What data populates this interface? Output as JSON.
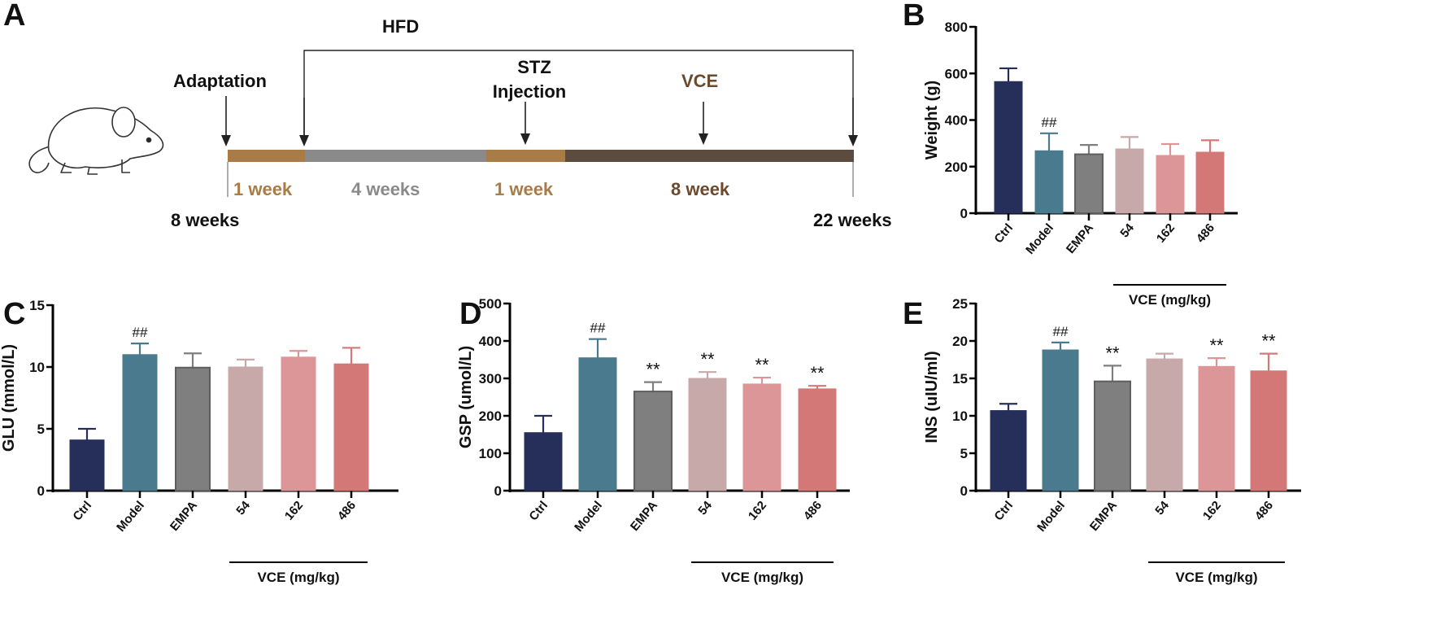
{
  "panel_letters": [
    "A",
    "B",
    "C",
    "D",
    "E"
  ],
  "timeline": {
    "hfd": "HFD",
    "adaptation": "Adaptation",
    "stz_line1": "STZ",
    "stz_line2": "Injection",
    "vce": "VCE",
    "start": "8 weeks",
    "end": "22 weeks",
    "segments": [
      {
        "label": "1 week",
        "weeks": 1,
        "color": "#a87c47"
      },
      {
        "label": "4 weeks",
        "weeks": 4,
        "color": "#8a8a8a"
      },
      {
        "label": "1 week",
        "weeks": 1,
        "color": "#a87c47"
      },
      {
        "label": "8 week",
        "weeks": 8,
        "color": "#5c4c3f"
      }
    ],
    "vce_color": "#6b4a2e"
  },
  "colors": [
    "#262f5a",
    "#4a7a8e",
    "#7f7f7f",
    "#c8a9aa",
    "#dd9697",
    "#d47877"
  ],
  "chart_data": [
    {
      "id": "B",
      "type": "bar",
      "ylabel": "Weight (g)",
      "ylim": [
        0,
        800
      ],
      "yticks": [
        0,
        200,
        400,
        600,
        800
      ],
      "categories": [
        "Ctrl",
        "Model",
        "EMPA",
        "54",
        "162",
        "486"
      ],
      "group_label": "VCE (mg/kg)",
      "values": [
        565,
        268,
        253,
        276,
        248,
        262
      ],
      "errors": [
        57,
        75,
        40,
        51,
        49,
        51
      ],
      "annotations": [
        "",
        "##",
        "",
        "",
        "",
        ""
      ]
    },
    {
      "id": "C",
      "type": "bar",
      "ylabel": "GLU (mmol/L)",
      "ylim": [
        0,
        15
      ],
      "yticks": [
        0,
        5,
        10,
        15
      ],
      "categories": [
        "Ctrl",
        "Model",
        "EMPA",
        "54",
        "162",
        "486"
      ],
      "group_label": "VCE (mg/kg)",
      "values": [
        4.1,
        11.0,
        9.95,
        10.0,
        10.8,
        10.25
      ],
      "errors": [
        0.9,
        0.9,
        1.15,
        0.6,
        0.5,
        1.3
      ],
      "annotations": [
        "",
        "##",
        "",
        "",
        "",
        ""
      ]
    },
    {
      "id": "D",
      "type": "bar",
      "ylabel": "GSP (umol/L)",
      "ylim": [
        0,
        500
      ],
      "yticks": [
        0,
        100,
        200,
        300,
        400,
        500
      ],
      "categories": [
        "Ctrl",
        "Model",
        "EMPA",
        "54",
        "162",
        "486"
      ],
      "group_label": "VCE (mg/kg)",
      "values": [
        155,
        355,
        265,
        300,
        285,
        272
      ],
      "errors": [
        45,
        50,
        25,
        17,
        17,
        8
      ],
      "annotations": [
        "",
        "##",
        "**",
        "**",
        "**",
        "**"
      ]
    },
    {
      "id": "E",
      "type": "bar",
      "ylabel": "INS (uIU/ml)",
      "ylim": [
        0,
        25
      ],
      "yticks": [
        0,
        5,
        10,
        15,
        20,
        25
      ],
      "categories": [
        "Ctrl",
        "Model",
        "EMPA",
        "54",
        "162",
        "486"
      ],
      "group_label": "VCE (mg/kg)",
      "values": [
        10.7,
        18.8,
        14.6,
        17.6,
        16.6,
        16.0
      ],
      "errors": [
        0.9,
        1.0,
        2.1,
        0.7,
        1.1,
        2.3
      ],
      "annotations": [
        "",
        "##",
        "**",
        "",
        "**",
        "**"
      ]
    }
  ]
}
